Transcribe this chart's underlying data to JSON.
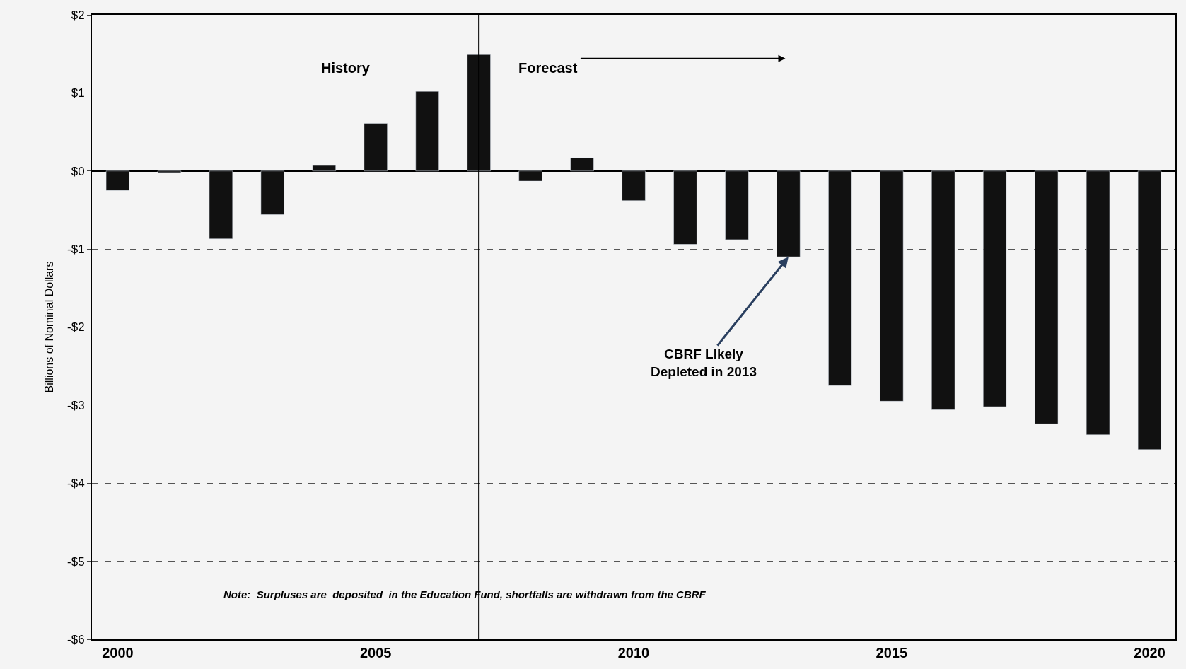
{
  "chart_data": {
    "type": "bar",
    "ylabel": "Billions of Nominal Dollars",
    "x": [
      2000,
      2001,
      2002,
      2003,
      2004,
      2005,
      2006,
      2007,
      2008,
      2009,
      2010,
      2011,
      2012,
      2013,
      2014,
      2015,
      2016,
      2017,
      2018,
      2019,
      2020
    ],
    "values": [
      -0.25,
      -0.02,
      -0.87,
      -0.56,
      0.07,
      0.61,
      1.02,
      1.49,
      -0.13,
      0.17,
      -0.38,
      -0.94,
      -0.88,
      -1.1,
      -2.75,
      -2.95,
      -3.06,
      -3.02,
      -3.24,
      -3.38,
      -3.57
    ],
    "color": "#111111",
    "xlim": [
      1999.5,
      2020.5
    ],
    "xticks": [
      2000,
      2005,
      2010,
      2015,
      2020
    ],
    "ylim": [
      -6,
      2
    ],
    "yticks": [
      {
        "value": 2,
        "label": "$2"
      },
      {
        "value": 1,
        "label": "$1"
      },
      {
        "value": 0,
        "label": "$0"
      },
      {
        "value": -1,
        "label": "-$1"
      },
      {
        "value": -2,
        "label": "-$2"
      },
      {
        "value": -3,
        "label": "-$3"
      },
      {
        "value": -4,
        "label": "-$4"
      },
      {
        "value": -5,
        "label": "-$5"
      },
      {
        "value": -6,
        "label": "-$6"
      }
    ],
    "grid": "y",
    "ref_lines": [
      {
        "axis": "x",
        "value": 2007,
        "color": "#000000"
      }
    ],
    "annotations": [
      "History",
      "Forecast",
      {
        "text": "CBRF Likely\nDepleted in 2013",
        "x": 2013,
        "y": -1.1
      },
      "Note:  Surpluses are  deposited  in the Education Fund, shortfalls are withdrawn from the CBRF"
    ]
  }
}
